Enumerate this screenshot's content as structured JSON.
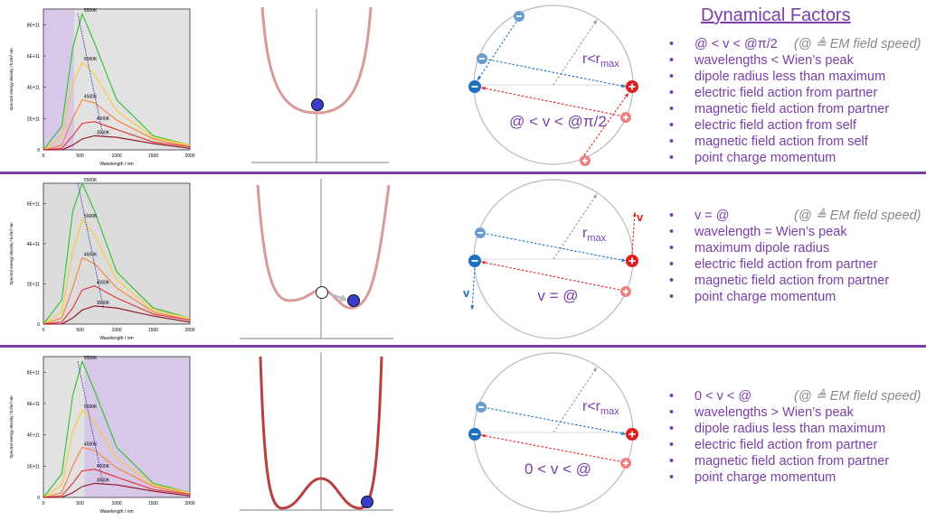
{
  "header": {
    "title": "Dynamical Factors"
  },
  "colors": {
    "accent": "#7a3ea8",
    "blue_charge": "#1e6fc0",
    "red_charge": "#e02020",
    "shade": "#d8c8e8"
  },
  "charts": [
    {
      "type": "line",
      "ylabel": "Spectral energy density / kJ/m³ nm",
      "xlabel": "Wavelength / nm",
      "x_ticks": [
        "0",
        "500",
        "1000",
        "1500",
        "2000"
      ],
      "y_ticks": [
        "0",
        "2E+11",
        "4E+11",
        "6E+11",
        "8E+11"
      ],
      "series_labels": [
        "5500K",
        "5000K",
        "4500K",
        "4000K",
        "3500K"
      ]
    },
    {
      "type": "line",
      "ylabel": "Spectral energy density / kJ/m³ nm",
      "xlabel": "Wavelength / nm",
      "x_ticks": [
        "0",
        "500",
        "1000",
        "1500",
        "2000"
      ],
      "y_ticks": [
        "0",
        "2E+11",
        "4E+11",
        "6E+11"
      ],
      "series_labels": [
        "5500K",
        "5000K",
        "4500K",
        "4000K",
        "3500K"
      ]
    },
    {
      "type": "line",
      "ylabel": "Spectral energy density / kJ/m³ nm",
      "xlabel": "Wavelength / nm",
      "x_ticks": [
        "0",
        "500",
        "1000",
        "1500",
        "2000"
      ],
      "y_ticks": [
        "0",
        "2E+11",
        "4E+11",
        "6E+11",
        "8E+11"
      ],
      "series_labels": [
        "5500K",
        "5000K",
        "4500K",
        "4000K",
        "3500K"
      ]
    }
  ],
  "chart_data": [
    {
      "type": "line",
      "x": [
        0,
        250,
        400,
        530,
        700,
        1000,
        1500,
        2000
      ],
      "series": [
        {
          "name": "5500K",
          "values": [
            0,
            1.5,
            6.5,
            8.7,
            6.8,
            3.2,
            0.9,
            0.3
          ]
        },
        {
          "name": "5000K",
          "values": [
            0,
            0.8,
            4.2,
            5.6,
            4.8,
            2.5,
            0.8,
            0.3
          ]
        },
        {
          "name": "4500K",
          "values": [
            0,
            0.3,
            2.0,
            3.2,
            3.0,
            1.9,
            0.7,
            0.2
          ]
        },
        {
          "name": "4000K",
          "values": [
            0,
            0.1,
            0.9,
            1.7,
            1.8,
            1.3,
            0.5,
            0.2
          ]
        },
        {
          "name": "3500K",
          "values": [
            0,
            0.0,
            0.3,
            0.7,
            0.9,
            0.8,
            0.4,
            0.1
          ]
        }
      ],
      "ylim": [
        0,
        9
      ]
    },
    {
      "type": "line",
      "x": [
        0,
        250,
        400,
        530,
        700,
        1000,
        1500,
        2000
      ],
      "series": [
        {
          "name": "5500K",
          "values": [
            0,
            1.2,
            5.6,
            7.0,
            5.6,
            2.6,
            0.8,
            0.3
          ]
        },
        {
          "name": "5000K",
          "values": [
            0,
            0.6,
            3.6,
            5.2,
            4.4,
            2.2,
            0.7,
            0.3
          ]
        },
        {
          "name": "4500K",
          "values": [
            0,
            0.3,
            1.8,
            3.3,
            3.0,
            1.8,
            0.6,
            0.2
          ]
        },
        {
          "name": "4000K",
          "values": [
            0,
            0.1,
            0.8,
            1.7,
            1.9,
            1.3,
            0.5,
            0.2
          ]
        },
        {
          "name": "3500K",
          "values": [
            0,
            0.0,
            0.3,
            0.7,
            0.9,
            0.8,
            0.4,
            0.1
          ]
        }
      ],
      "ylim": [
        0,
        7
      ]
    },
    {
      "type": "line",
      "x": [
        0,
        250,
        400,
        530,
        700,
        1000,
        1500,
        2000
      ],
      "series": [
        {
          "name": "5500K",
          "values": [
            0,
            1.5,
            6.5,
            8.7,
            6.8,
            3.2,
            0.9,
            0.3
          ]
        },
        {
          "name": "5000K",
          "values": [
            0,
            0.8,
            4.2,
            5.6,
            4.8,
            2.5,
            0.8,
            0.3
          ]
        },
        {
          "name": "4500K",
          "values": [
            0,
            0.3,
            2.0,
            3.2,
            3.0,
            1.9,
            0.7,
            0.2
          ]
        },
        {
          "name": "4000K",
          "values": [
            0,
            0.1,
            0.9,
            1.7,
            1.8,
            1.3,
            0.5,
            0.2
          ]
        },
        {
          "name": "3500K",
          "values": [
            0,
            0.0,
            0.3,
            0.7,
            0.9,
            0.8,
            0.4,
            0.1
          ]
        }
      ],
      "ylim": [
        0,
        9
      ]
    }
  ],
  "circles": [
    {
      "r_label": "r<r",
      "r_sub": "max",
      "eq": "@ < v < @π/2"
    },
    {
      "r_label": "r",
      "r_sub": "max",
      "eq": "v = @",
      "v_label": "v"
    },
    {
      "r_label": "r<r",
      "r_sub": "max",
      "eq": "0 < v < @"
    }
  ],
  "lists": [
    {
      "items": [
        {
          "text": "@ < v < @π/2",
          "note": "(@ ≜ EM field speed)"
        },
        {
          "text": "wavelengths < Wien’s peak"
        },
        {
          "text": "dipole radius less than maximum"
        },
        {
          "text": "electric field action from partner"
        },
        {
          "text": "magnetic field action from partner"
        },
        {
          "text": "electric field action from self"
        },
        {
          "text": "magnetic field action from self"
        },
        {
          "text": "point charge momentum"
        }
      ]
    },
    {
      "items": [
        {
          "text": "v = @",
          "note": "(@ ≜ EM field speed)"
        },
        {
          "text": "wavelength = Wien’s peak"
        },
        {
          "text": "maximum dipole radius"
        },
        {
          "text": "electric field action from partner"
        },
        {
          "text": "magnetic field action from partner"
        },
        {
          "text": "point charge momentum"
        }
      ]
    },
    {
      "items": [
        {
          "text": "0 < v < @",
          "note": "(@ ≜ EM field speed)"
        },
        {
          "text": "wavelengths > Wien’s peak"
        },
        {
          "text": "dipole radius less than maximum"
        },
        {
          "text": "electric field action from partner"
        },
        {
          "text": "magnetic field action from partner"
        },
        {
          "text": "point charge momentum"
        }
      ]
    }
  ]
}
